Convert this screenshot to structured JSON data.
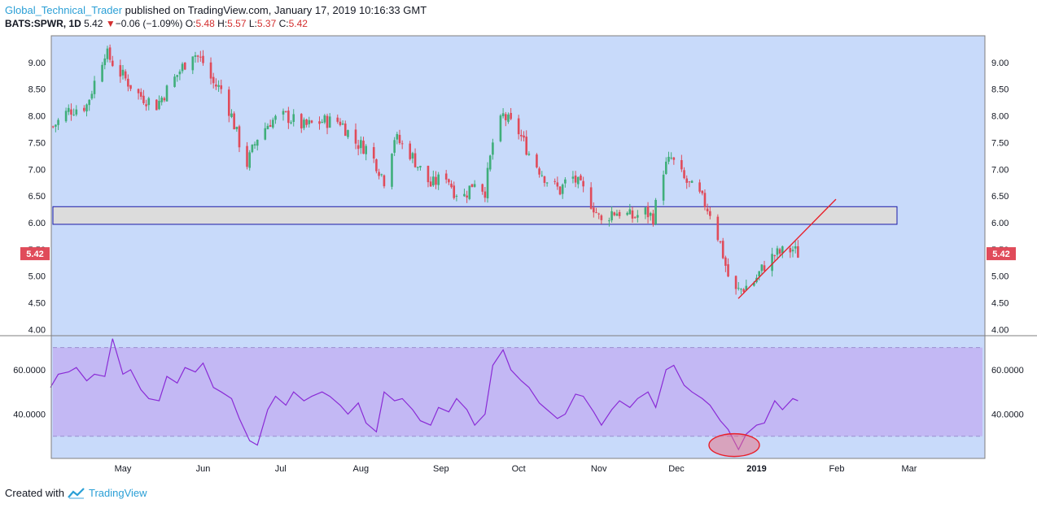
{
  "header": {
    "author": "Global_Technical_Trader",
    "published": " published on TradingView.com, January 17, 2019 10:16:33 GMT",
    "symbol": "BATS:SPWR, 1D",
    "last": "5.42",
    "change_arrow": "▼",
    "change": "−0.06 (−1.09%)",
    "o_label": "O:",
    "o_val": "5.48",
    "h_label": "H:",
    "h_val": "5.57",
    "l_label": "L:",
    "l_val": "5.37",
    "c_label": "C:",
    "c_val": "5.42"
  },
  "footer": {
    "created_with": "Created with",
    "brand": "TradingView"
  },
  "colors": {
    "background": "#c8dafa",
    "up": "#3fae7a",
    "down": "#e04b5a",
    "rsi_line": "#8a2bd6",
    "rsi_band": "#c3b8f4",
    "zone_fill": "#dcdcdc",
    "zone_border": "#1a1aa8",
    "trend_line": "#e8202a",
    "price_badge": "#e04b5a"
  },
  "chart_data": [
    {
      "type": "candlestick",
      "panel": "price",
      "y_ticks": [
        "4.00",
        "4.50",
        "5.00",
        "5.50",
        "6.00",
        "6.50",
        "7.00",
        "7.50",
        "8.00",
        "8.50",
        "9.00"
      ],
      "ylim": [
        3.9,
        9.5
      ],
      "x_ticks": [
        "May",
        "Jun",
        "Jul",
        "Aug",
        "Sep",
        "Oct",
        "Nov",
        "Dec",
        "2019",
        "Feb",
        "Mar"
      ],
      "last_price_label": "5.42",
      "close_path": [
        [
          "Apr 04",
          7.8
        ],
        [
          "Apr 10",
          8.1
        ],
        [
          "Apr 17",
          8.2
        ],
        [
          "Apr 24",
          9.2
        ],
        [
          "Apr 30",
          8.8
        ],
        [
          "May 07",
          8.4
        ],
        [
          "May 14",
          8.2
        ],
        [
          "May 21",
          8.7
        ],
        [
          "May 28",
          9.2
        ],
        [
          "Jun 01",
          9.0
        ],
        [
          "Jun 05",
          8.6
        ],
        [
          "Jun 08",
          8.5
        ],
        [
          "Jun 12",
          8.0
        ],
        [
          "Jun 15",
          7.5
        ],
        [
          "Jun 18",
          7.1
        ],
        [
          "Jun 22",
          7.6
        ],
        [
          "Jun 27",
          7.9
        ],
        [
          "Jul 03",
          8.0
        ],
        [
          "Jul 10",
          7.8
        ],
        [
          "Jul 17",
          7.9
        ],
        [
          "Jul 24",
          7.9
        ],
        [
          "Jul 30",
          7.5
        ],
        [
          "Aug 03",
          7.4
        ],
        [
          "Aug 07",
          7.1
        ],
        [
          "Aug 10",
          6.8
        ],
        [
          "Aug 14",
          7.6
        ],
        [
          "Aug 20",
          7.3
        ],
        [
          "Aug 24",
          7.0
        ],
        [
          "Aug 28",
          6.7
        ],
        [
          "Sep 03",
          6.9
        ],
        [
          "Sep 06",
          6.6
        ],
        [
          "Sep 10",
          6.5
        ],
        [
          "Sep 14",
          6.8
        ],
        [
          "Sep 18",
          6.6
        ],
        [
          "Sep 21",
          7.5
        ],
        [
          "Sep 25",
          8.0
        ],
        [
          "Oct 01",
          7.7
        ],
        [
          "Oct 05",
          7.3
        ],
        [
          "Oct 09",
          7.0
        ],
        [
          "Oct 12",
          6.8
        ],
        [
          "Oct 17",
          6.6
        ],
        [
          "Oct 21",
          6.9
        ],
        [
          "Oct 26",
          6.6
        ],
        [
          "Oct 30",
          6.3
        ],
        [
          "Nov 02",
          6.0
        ],
        [
          "Nov 06",
          6.2
        ],
        [
          "Nov 09",
          6.2
        ],
        [
          "Nov 14",
          6.1
        ],
        [
          "Nov 19",
          6.2
        ],
        [
          "Nov 22",
          6.1
        ],
        [
          "Nov 26",
          7.0
        ],
        [
          "Nov 29",
          7.2
        ],
        [
          "Dec 04",
          6.8
        ],
        [
          "Dec 10",
          6.5
        ],
        [
          "Dec 14",
          6.2
        ],
        [
          "Dec 18",
          5.6
        ],
        [
          "Dec 21",
          5.0
        ],
        [
          "Dec 24",
          4.7
        ],
        [
          "Dec 31",
          4.9
        ],
        [
          "Jan 04",
          5.2
        ],
        [
          "Jan 08",
          5.4
        ],
        [
          "Jan 11",
          5.45
        ],
        [
          "Jan 15",
          5.5
        ],
        [
          "Jan 17",
          5.42
        ]
      ]
    },
    {
      "type": "line",
      "panel": "rsi",
      "y_ticks": [
        "40.0000",
        "60.0000"
      ],
      "ylim": [
        20,
        75
      ],
      "band": [
        30,
        70
      ],
      "values_path": [
        [
          "Apr 03",
          52
        ],
        [
          "Apr 06",
          58
        ],
        [
          "Apr 10",
          59
        ],
        [
          "Apr 13",
          61
        ],
        [
          "Apr 17",
          55
        ],
        [
          "Apr 20",
          58
        ],
        [
          "Apr 24",
          57
        ],
        [
          "Apr 27",
          74
        ],
        [
          "May 01",
          58
        ],
        [
          "May 04",
          60
        ],
        [
          "May 08",
          51
        ],
        [
          "May 11",
          47
        ],
        [
          "May 15",
          46
        ],
        [
          "May 18",
          57
        ],
        [
          "May 22",
          54
        ],
        [
          "May 25",
          61
        ],
        [
          "May 29",
          59
        ],
        [
          "Jun 01",
          63
        ],
        [
          "Jun 05",
          52
        ],
        [
          "Jun 08",
          50
        ],
        [
          "Jun 12",
          47
        ],
        [
          "Jun 15",
          38
        ],
        [
          "Jun 19",
          28
        ],
        [
          "Jun 22",
          26
        ],
        [
          "Jun 26",
          42
        ],
        [
          "Jun 29",
          48
        ],
        [
          "Jul 03",
          44
        ],
        [
          "Jul 06",
          50
        ],
        [
          "Jul 10",
          46
        ],
        [
          "Jul 13",
          48
        ],
        [
          "Jul 17",
          50
        ],
        [
          "Jul 20",
          48
        ],
        [
          "Jul 24",
          44
        ],
        [
          "Jul 27",
          40
        ],
        [
          "Jul 31",
          45
        ],
        [
          "Aug 03",
          36
        ],
        [
          "Aug 07",
          32
        ],
        [
          "Aug 10",
          50
        ],
        [
          "Aug 14",
          46
        ],
        [
          "Aug 17",
          47
        ],
        [
          "Aug 21",
          42
        ],
        [
          "Aug 24",
          37
        ],
        [
          "Aug 28",
          35
        ],
        [
          "Aug 31",
          43
        ],
        [
          "Sep 04",
          41
        ],
        [
          "Sep 07",
          47
        ],
        [
          "Sep 11",
          42
        ],
        [
          "Sep 14",
          35
        ],
        [
          "Sep 18",
          40
        ],
        [
          "Sep 21",
          62
        ],
        [
          "Sep 25",
          69
        ],
        [
          "Sep 28",
          60
        ],
        [
          "Oct 02",
          55
        ],
        [
          "Oct 05",
          52
        ],
        [
          "Oct 09",
          45
        ],
        [
          "Oct 12",
          42
        ],
        [
          "Oct 16",
          38
        ],
        [
          "Oct 19",
          40
        ],
        [
          "Oct 23",
          49
        ],
        [
          "Oct 26",
          48
        ],
        [
          "Oct 30",
          41
        ],
        [
          "Nov 02",
          35
        ],
        [
          "Nov 06",
          42
        ],
        [
          "Nov 09",
          46
        ],
        [
          "Nov 13",
          43
        ],
        [
          "Nov 16",
          47
        ],
        [
          "Nov 20",
          50
        ],
        [
          "Nov 23",
          43
        ],
        [
          "Nov 27",
          60
        ],
        [
          "Nov 30",
          62
        ],
        [
          "Dec 04",
          53
        ],
        [
          "Dec 07",
          50
        ],
        [
          "Dec 11",
          47
        ],
        [
          "Dec 14",
          44
        ],
        [
          "Dec 18",
          37
        ],
        [
          "Dec 21",
          33
        ],
        [
          "Dec 25",
          24
        ],
        [
          "Dec 28",
          31
        ],
        [
          "Jan 01",
          35
        ],
        [
          "Jan 04",
          36
        ],
        [
          "Jan 08",
          46
        ],
        [
          "Jan 11",
          42
        ],
        [
          "Jan 15",
          47
        ],
        [
          "Jan 17",
          46
        ]
      ]
    }
  ]
}
